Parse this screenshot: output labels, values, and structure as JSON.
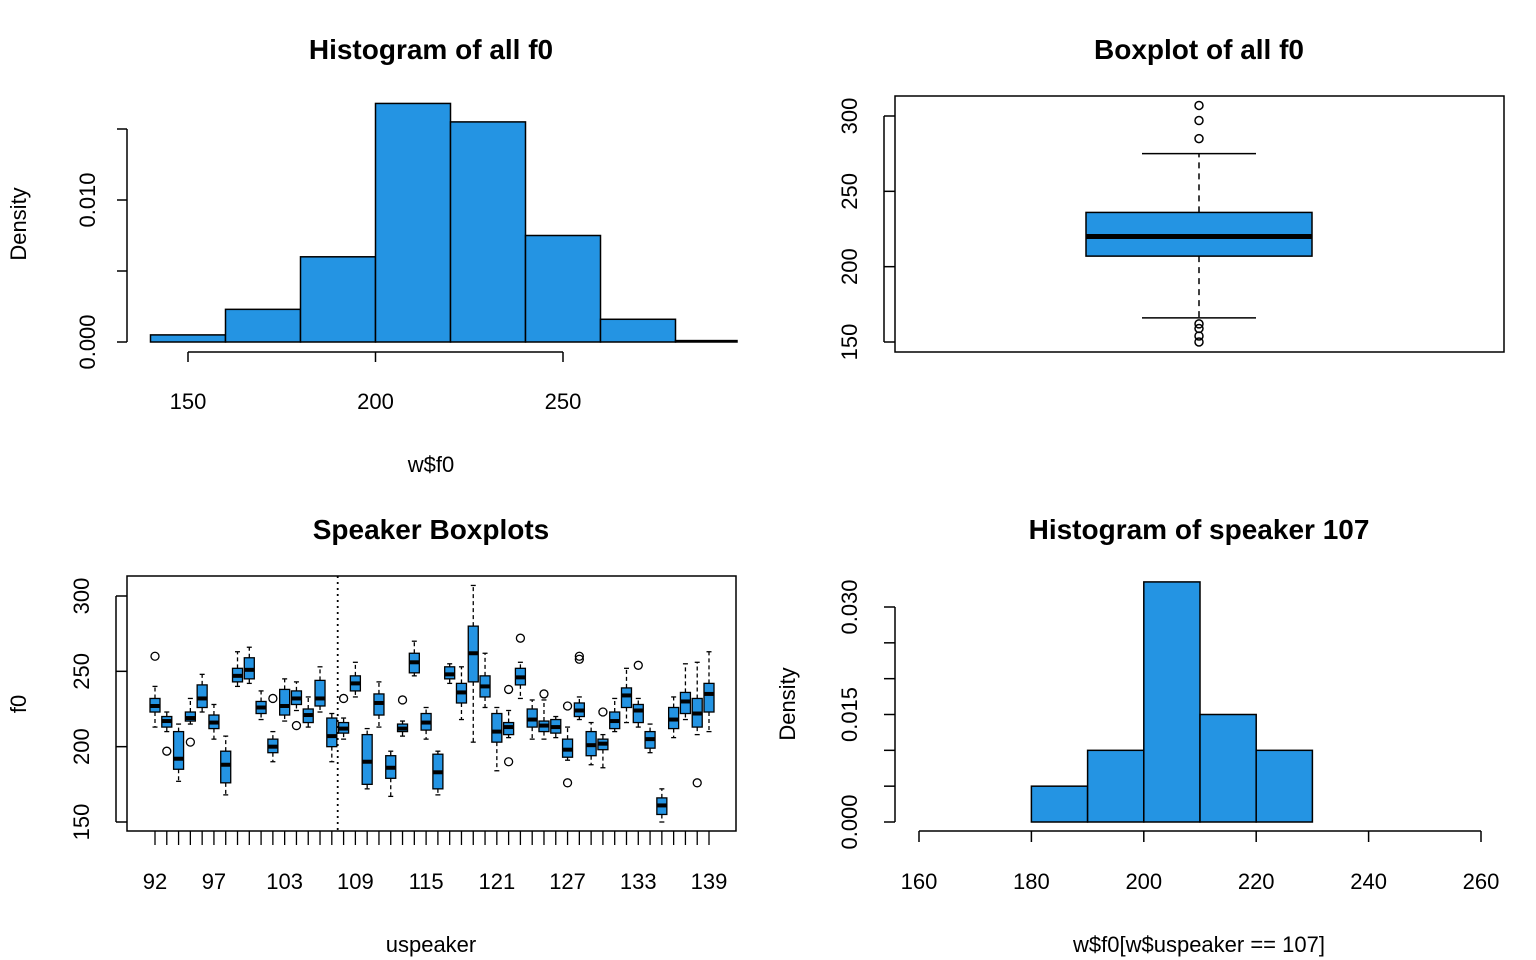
{
  "colors": {
    "fill": "#2494e3",
    "line": "#000000",
    "background": "#ffffff"
  },
  "chart_data": [
    {
      "type": "histogram",
      "title": "Histogram of all f0",
      "xlabel": "w$f0",
      "ylabel": "Density",
      "xticks": [
        150,
        200,
        250
      ],
      "yticks": [
        0,
        0.005,
        0.01,
        0.015
      ],
      "ytick_labels": [
        "0.000",
        "",
        "0.010",
        ""
      ],
      "bins": [
        {
          "x0": 140,
          "x1": 160,
          "density": 0.0005
        },
        {
          "x0": 160,
          "x1": 180,
          "density": 0.0023
        },
        {
          "x0": 180,
          "x1": 200,
          "density": 0.006
        },
        {
          "x0": 200,
          "x1": 220,
          "density": 0.0168
        },
        {
          "x0": 220,
          "x1": 240,
          "density": 0.0155
        },
        {
          "x0": 240,
          "x1": 260,
          "density": 0.0075
        },
        {
          "x0": 260,
          "x1": 280,
          "density": 0.0016
        },
        {
          "x0": 280,
          "x1": 300,
          "density": 0.0001
        }
      ]
    },
    {
      "type": "boxplot",
      "title": "Boxplot of all f0",
      "yticks": [
        150,
        200,
        250,
        300
      ],
      "ylim": [
        143,
        310
      ],
      "box": {
        "lower_whisker": 166,
        "q1": 207,
        "median": 220,
        "q3": 236,
        "upper_whisker": 275
      },
      "outliers": [
        307,
        297,
        285,
        162,
        159,
        154,
        150
      ]
    },
    {
      "type": "boxplot",
      "title": "Speaker Boxplots",
      "xlabel": "uspeaker",
      "ylabel": "f0",
      "yticks": [
        150,
        200,
        250,
        300
      ],
      "ylim": [
        142,
        312
      ],
      "xtick_labels": [
        "92",
        "97",
        "103",
        "109",
        "115",
        "121",
        "127",
        "133",
        "139"
      ],
      "highlight_line_after_index": 15,
      "boxes": [
        {
          "lw": 213,
          "q1": 223,
          "med": 227,
          "q3": 232,
          "uw": 240,
          "out": [
            260
          ]
        },
        {
          "lw": 210,
          "q1": 213,
          "med": 217,
          "q3": 220,
          "uw": 223,
          "out": [
            197
          ]
        },
        {
          "lw": 177,
          "q1": 185,
          "med": 192,
          "q3": 210,
          "uw": 215,
          "out": []
        },
        {
          "lw": 215,
          "q1": 217,
          "med": 219,
          "q3": 223,
          "uw": 232,
          "out": [
            203
          ]
        },
        {
          "lw": 223,
          "q1": 226,
          "med": 232,
          "q3": 241,
          "uw": 248,
          "out": []
        },
        {
          "lw": 205,
          "q1": 212,
          "med": 216,
          "q3": 221,
          "uw": 228,
          "out": []
        },
        {
          "lw": 168,
          "q1": 176,
          "med": 188,
          "q3": 197,
          "uw": 207,
          "out": []
        },
        {
          "lw": 240,
          "q1": 243,
          "med": 247,
          "q3": 252,
          "uw": 263,
          "out": []
        },
        {
          "lw": 242,
          "q1": 245,
          "med": 251,
          "q3": 259,
          "uw": 266,
          "out": []
        },
        {
          "lw": 218,
          "q1": 222,
          "med": 226,
          "q3": 230,
          "uw": 237,
          "out": []
        },
        {
          "lw": 190,
          "q1": 196,
          "med": 200,
          "q3": 205,
          "uw": 210,
          "out": [
            232
          ]
        },
        {
          "lw": 217,
          "q1": 221,
          "med": 227,
          "q3": 238,
          "uw": 245,
          "out": []
        },
        {
          "lw": 224,
          "q1": 228,
          "med": 232,
          "q3": 237,
          "uw": 243,
          "out": [
            214
          ]
        },
        {
          "lw": 213,
          "q1": 216,
          "med": 221,
          "q3": 225,
          "uw": 233,
          "out": []
        },
        {
          "lw": 223,
          "q1": 227,
          "med": 232,
          "q3": 244,
          "uw": 253,
          "out": []
        },
        {
          "lw": 190,
          "q1": 200,
          "med": 207,
          "q3": 219,
          "uw": 222,
          "out": []
        },
        {
          "lw": 205,
          "q1": 209,
          "med": 212,
          "q3": 216,
          "uw": 219,
          "out": [
            232
          ]
        },
        {
          "lw": 233,
          "q1": 237,
          "med": 242,
          "q3": 247,
          "uw": 256,
          "out": []
        },
        {
          "lw": 172,
          "q1": 175,
          "med": 190,
          "q3": 208,
          "uw": 212,
          "out": []
        },
        {
          "lw": 213,
          "q1": 221,
          "med": 229,
          "q3": 235,
          "uw": 243,
          "out": []
        },
        {
          "lw": 167,
          "q1": 179,
          "med": 186,
          "q3": 194,
          "uw": 197,
          "out": []
        },
        {
          "lw": 207,
          "q1": 210,
          "med": 212,
          "q3": 215,
          "uw": 217,
          "out": [
            231
          ]
        },
        {
          "lw": 247,
          "q1": 249,
          "med": 256,
          "q3": 262,
          "uw": 270,
          "out": []
        },
        {
          "lw": 205,
          "q1": 211,
          "med": 216,
          "q3": 222,
          "uw": 226,
          "out": []
        },
        {
          "lw": 168,
          "q1": 172,
          "med": 183,
          "q3": 195,
          "uw": 197,
          "out": []
        },
        {
          "lw": 242,
          "q1": 245,
          "med": 248,
          "q3": 253,
          "uw": 255,
          "out": []
        },
        {
          "lw": 218,
          "q1": 229,
          "med": 236,
          "q3": 242,
          "uw": 253,
          "out": []
        },
        {
          "lw": 203,
          "q1": 243,
          "med": 262,
          "q3": 280,
          "uw": 307,
          "out": []
        },
        {
          "lw": 226,
          "q1": 233,
          "med": 240,
          "q3": 247,
          "uw": 262,
          "out": []
        },
        {
          "lw": 184,
          "q1": 203,
          "med": 210,
          "q3": 222,
          "uw": 226,
          "out": []
        },
        {
          "lw": 206,
          "q1": 208,
          "med": 213,
          "q3": 216,
          "uw": 224,
          "out": [
            190,
            238
          ]
        },
        {
          "lw": 232,
          "q1": 241,
          "med": 246,
          "q3": 252,
          "uw": 256,
          "out": [
            272
          ]
        },
        {
          "lw": 205,
          "q1": 213,
          "med": 218,
          "q3": 225,
          "uw": 231,
          "out": []
        },
        {
          "lw": 205,
          "q1": 210,
          "med": 214,
          "q3": 217,
          "uw": 231,
          "out": [
            235
          ]
        },
        {
          "lw": 206,
          "q1": 209,
          "med": 213,
          "q3": 218,
          "uw": 220,
          "out": []
        },
        {
          "lw": 191,
          "q1": 193,
          "med": 198,
          "q3": 205,
          "uw": 213,
          "out": [
            227,
            176
          ]
        },
        {
          "lw": 218,
          "q1": 220,
          "med": 224,
          "q3": 229,
          "uw": 233,
          "out": [
            260,
            258
          ]
        },
        {
          "lw": 188,
          "q1": 194,
          "med": 201,
          "q3": 210,
          "uw": 216,
          "out": []
        },
        {
          "lw": 186,
          "q1": 198,
          "med": 202,
          "q3": 205,
          "uw": 208,
          "out": [
            223
          ]
        },
        {
          "lw": 210,
          "q1": 212,
          "med": 217,
          "q3": 223,
          "uw": 232,
          "out": []
        },
        {
          "lw": 216,
          "q1": 226,
          "med": 234,
          "q3": 239,
          "uw": 252,
          "out": []
        },
        {
          "lw": 213,
          "q1": 216,
          "med": 224,
          "q3": 228,
          "uw": 232,
          "out": [
            254
          ]
        },
        {
          "lw": 196,
          "q1": 199,
          "med": 205,
          "q3": 210,
          "uw": 215,
          "out": []
        },
        {
          "lw": 150,
          "q1": 155,
          "med": 161,
          "q3": 166,
          "uw": 172,
          "out": []
        },
        {
          "lw": 206,
          "q1": 212,
          "med": 218,
          "q3": 226,
          "uw": 233,
          "out": []
        },
        {
          "lw": 218,
          "q1": 222,
          "med": 230,
          "q3": 236,
          "uw": 255,
          "out": []
        },
        {
          "lw": 208,
          "q1": 213,
          "med": 222,
          "q3": 232,
          "uw": 256,
          "out": [
            176
          ]
        },
        {
          "lw": 210,
          "q1": 223,
          "med": 235,
          "q3": 242,
          "uw": 263,
          "out": []
        }
      ]
    },
    {
      "type": "histogram",
      "title": "Histogram of speaker 107",
      "xlabel": "w$f0[w$uspeaker == 107]",
      "ylabel": "Density",
      "xticks": [
        160,
        180,
        200,
        220,
        240,
        260
      ],
      "yticks": [
        0,
        0.005,
        0.01,
        0.015,
        0.02,
        0.025,
        0.03
      ],
      "ytick_labels": [
        "0.000",
        "",
        "",
        "0.015",
        "",
        "",
        "0.030"
      ],
      "bins": [
        {
          "x0": 180,
          "x1": 190,
          "density": 0.005
        },
        {
          "x0": 190,
          "x1": 200,
          "density": 0.01
        },
        {
          "x0": 200,
          "x1": 210,
          "density": 0.0335
        },
        {
          "x0": 210,
          "x1": 220,
          "density": 0.015
        },
        {
          "x0": 220,
          "x1": 230,
          "density": 0.01
        }
      ]
    }
  ]
}
